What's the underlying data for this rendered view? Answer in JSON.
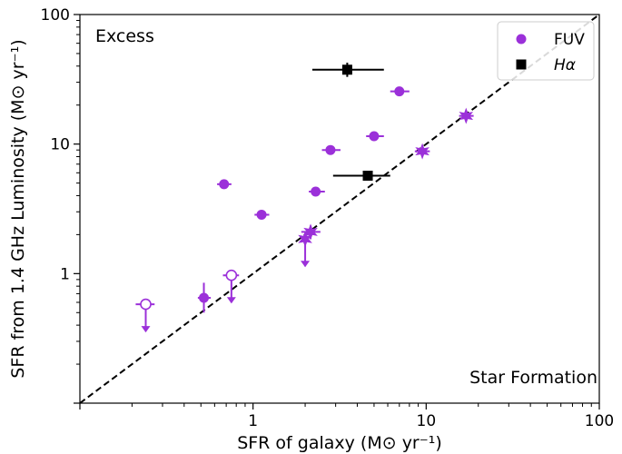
{
  "chart_data": {
    "type": "scatter",
    "xlabel": "SFR of galaxy (M⊙ yr⁻¹)",
    "ylabel": "SFR from 1.4 GHz Luminosity (M⊙ yr⁻¹)",
    "xscale": "log",
    "yscale": "log",
    "xlim": [
      0.1,
      100
    ],
    "ylim": [
      0.1,
      100
    ],
    "x_ticks": [
      {
        "value": 1,
        "label": "1"
      },
      {
        "value": 10,
        "label": "10"
      },
      {
        "value": 100,
        "label": "100"
      }
    ],
    "y_ticks": [
      {
        "value": 1,
        "label": "1"
      },
      {
        "value": 10,
        "label": "10"
      },
      {
        "value": 100,
        "label": "100"
      }
    ],
    "annotations": {
      "top_left": "Excess",
      "bottom_right": "Star Formation"
    },
    "legend": {
      "placement": "top-right",
      "entries": [
        "FUV",
        "Hα"
      ]
    },
    "one_to_one_line": true,
    "colors": {
      "fuv": "#9b30d9",
      "halpha": "#000000"
    },
    "series": [
      {
        "name": "FUV",
        "color": "#9b30d9",
        "points": [
          {
            "x": 0.68,
            "y": 4.9,
            "xerr": [
              0.06,
              0.07
            ],
            "yerr": [
              0.0,
              0.0
            ],
            "marker": "circle"
          },
          {
            "x": 1.12,
            "y": 2.85,
            "xerr": [
              0.1,
              0.12
            ],
            "yerr": [
              0.0,
              0.0
            ],
            "marker": "circle"
          },
          {
            "x": 2.8,
            "y": 9.0,
            "xerr": [
              0.3,
              0.4
            ],
            "yerr": [
              0.0,
              0.0
            ],
            "marker": "circle"
          },
          {
            "x": 2.3,
            "y": 4.3,
            "xerr": [
              0.2,
              0.3
            ],
            "yerr": [
              0.3,
              0.3
            ],
            "marker": "circle"
          },
          {
            "x": 5.0,
            "y": 11.5,
            "xerr": [
              0.5,
              0.7
            ],
            "yerr": [
              0.0,
              0.0
            ],
            "marker": "circle"
          },
          {
            "x": 7.0,
            "y": 25.5,
            "xerr": [
              0.8,
              1.0
            ],
            "yerr": [
              0.0,
              0.0
            ],
            "marker": "circle"
          },
          {
            "x": 0.52,
            "y": 0.65,
            "xerr": [
              0.04,
              0.05
            ],
            "yerr": [
              0.15,
              0.2
            ],
            "marker": "circle"
          },
          {
            "x": 2.15,
            "y": 2.1,
            "xerr": [
              0.25,
              0.3
            ],
            "yerr": [
              0.25,
              0.25
            ],
            "marker": "star"
          },
          {
            "x": 9.5,
            "y": 8.8,
            "xerr": [
              0.9,
              1.0
            ],
            "yerr": [
              0.6,
              0.6
            ],
            "marker": "star"
          },
          {
            "x": 17.0,
            "y": 16.5,
            "xerr": [
              1.5,
              1.8
            ],
            "yerr": [
              0.0,
              0.0
            ],
            "marker": "star"
          }
        ],
        "upper_limits": [
          {
            "x": 0.24,
            "y": 0.58,
            "xerr": [
              0.03,
              0.03
            ],
            "marker": "open-circle"
          },
          {
            "x": 0.75,
            "y": 0.97,
            "xerr": [
              0.08,
              0.08
            ],
            "marker": "open-circle"
          },
          {
            "x": 2.0,
            "y": 1.85,
            "xerr": [
              0.0,
              0.0
            ],
            "marker": "star"
          }
        ]
      },
      {
        "name": "Hα",
        "color": "#000000",
        "points": [
          {
            "x": 3.5,
            "y": 37.5,
            "xerr": [
              1.3,
              2.2
            ],
            "yerr": [
              4.5,
              5.0
            ],
            "marker": "square"
          },
          {
            "x": 4.6,
            "y": 5.7,
            "xerr": [
              1.7,
              1.6
            ],
            "yerr": [
              0.2,
              0.2
            ],
            "marker": "square"
          }
        ]
      }
    ]
  }
}
